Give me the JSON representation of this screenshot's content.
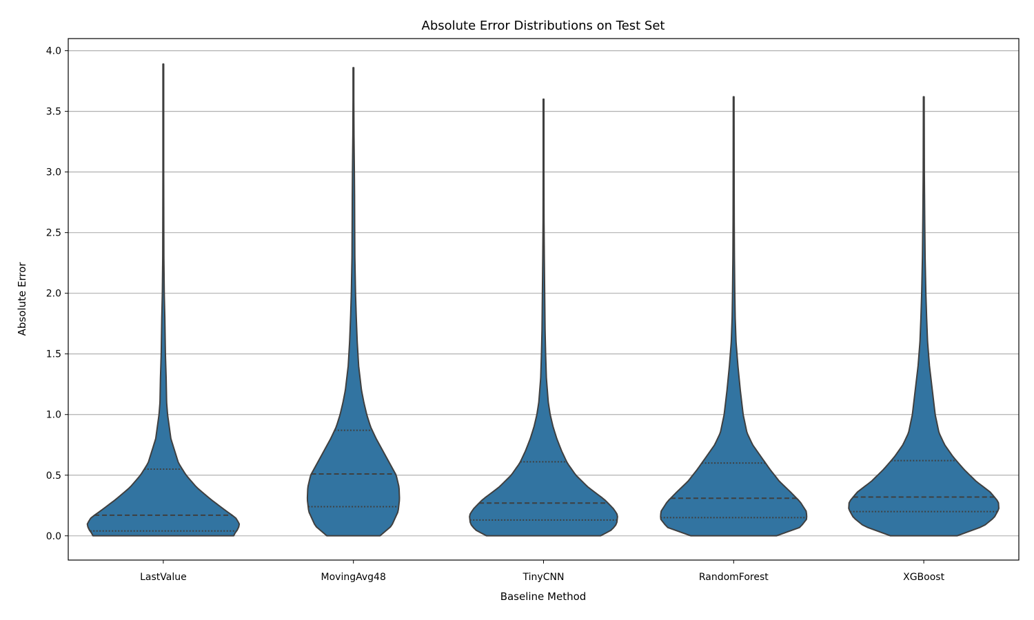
{
  "chart_data": {
    "type": "violin",
    "title": "Absolute Error Distributions on Test Set",
    "xlabel": "Baseline Method",
    "ylabel": "Absolute Error",
    "ylim": [
      -0.2,
      4.1
    ],
    "yticks": [
      0.0,
      0.5,
      1.0,
      1.5,
      2.0,
      2.5,
      3.0,
      3.5,
      4.0
    ],
    "ytick_labels": [
      "0.0",
      "0.5",
      "1.0",
      "1.5",
      "2.0",
      "2.5",
      "3.0",
      "3.5",
      "4.0"
    ],
    "grid": "horizontal",
    "fill_color": "#3274a1",
    "edge_color": "#3f3f3f",
    "categories": [
      "LastValue",
      "MovingAvg48",
      "TinyCNN",
      "RandomForest",
      "XGBoost"
    ],
    "series": [
      {
        "category": "LastValue",
        "min": 0.0,
        "max": 3.89,
        "quartiles": [
          0.04,
          0.17,
          0.55
        ],
        "density": [
          [
            0.0,
            0.74
          ],
          [
            0.03,
            0.76
          ],
          [
            0.06,
            0.79
          ],
          [
            0.1,
            0.8
          ],
          [
            0.15,
            0.76
          ],
          [
            0.2,
            0.67
          ],
          [
            0.3,
            0.5
          ],
          [
            0.4,
            0.35
          ],
          [
            0.5,
            0.24
          ],
          [
            0.6,
            0.16
          ],
          [
            0.8,
            0.08
          ],
          [
            1.0,
            0.045
          ],
          [
            1.1,
            0.035
          ],
          [
            1.3,
            0.03
          ],
          [
            1.5,
            0.022
          ],
          [
            1.8,
            0.016
          ],
          [
            2.0,
            0.01
          ],
          [
            2.3,
            0.006
          ],
          [
            2.6,
            0.005
          ],
          [
            3.0,
            0.004
          ],
          [
            3.5,
            0.004
          ],
          [
            3.89,
            0.004
          ]
        ]
      },
      {
        "category": "MovingAvg48",
        "min": 0.0,
        "max": 3.86,
        "quartiles": [
          0.24,
          0.51,
          0.87
        ],
        "density": [
          [
            0.0,
            0.28
          ],
          [
            0.08,
            0.4
          ],
          [
            0.2,
            0.47
          ],
          [
            0.3,
            0.485
          ],
          [
            0.4,
            0.48
          ],
          [
            0.5,
            0.45
          ],
          [
            0.6,
            0.38
          ],
          [
            0.7,
            0.31
          ],
          [
            0.8,
            0.24
          ],
          [
            0.9,
            0.18
          ],
          [
            1.0,
            0.14
          ],
          [
            1.1,
            0.11
          ],
          [
            1.2,
            0.085
          ],
          [
            1.4,
            0.055
          ],
          [
            1.6,
            0.04
          ],
          [
            1.8,
            0.03
          ],
          [
            2.0,
            0.022
          ],
          [
            2.3,
            0.015
          ],
          [
            2.6,
            0.013
          ],
          [
            2.8,
            0.012
          ],
          [
            3.0,
            0.01
          ],
          [
            3.3,
            0.006
          ],
          [
            3.6,
            0.004
          ],
          [
            3.86,
            0.004
          ]
        ]
      },
      {
        "category": "TinyCNN",
        "min": 0.0,
        "max": 3.6,
        "quartiles": [
          0.13,
          0.27,
          0.61
        ],
        "density": [
          [
            0.0,
            0.6
          ],
          [
            0.05,
            0.72
          ],
          [
            0.1,
            0.77
          ],
          [
            0.17,
            0.78
          ],
          [
            0.22,
            0.74
          ],
          [
            0.3,
            0.64
          ],
          [
            0.4,
            0.47
          ],
          [
            0.5,
            0.34
          ],
          [
            0.6,
            0.25
          ],
          [
            0.7,
            0.19
          ],
          [
            0.8,
            0.14
          ],
          [
            0.9,
            0.1
          ],
          [
            1.0,
            0.07
          ],
          [
            1.1,
            0.05
          ],
          [
            1.3,
            0.03
          ],
          [
            1.5,
            0.022
          ],
          [
            1.7,
            0.016
          ],
          [
            2.0,
            0.012
          ],
          [
            2.3,
            0.008
          ],
          [
            2.6,
            0.005
          ],
          [
            3.0,
            0.004
          ],
          [
            3.6,
            0.004
          ]
        ]
      },
      {
        "category": "RandomForest",
        "min": 0.0,
        "max": 3.62,
        "quartiles": [
          0.15,
          0.31,
          0.6
        ],
        "density": [
          [
            0.0,
            0.45
          ],
          [
            0.07,
            0.7
          ],
          [
            0.14,
            0.77
          ],
          [
            0.2,
            0.765
          ],
          [
            0.28,
            0.7
          ],
          [
            0.36,
            0.6
          ],
          [
            0.45,
            0.48
          ],
          [
            0.55,
            0.38
          ],
          [
            0.65,
            0.29
          ],
          [
            0.75,
            0.2
          ],
          [
            0.85,
            0.14
          ],
          [
            1.0,
            0.1
          ],
          [
            1.2,
            0.07
          ],
          [
            1.4,
            0.045
          ],
          [
            1.6,
            0.025
          ],
          [
            1.8,
            0.016
          ],
          [
            2.0,
            0.012
          ],
          [
            2.3,
            0.008
          ],
          [
            2.6,
            0.006
          ],
          [
            3.0,
            0.005
          ],
          [
            3.62,
            0.004
          ]
        ]
      },
      {
        "category": "XGBoost",
        "min": 0.0,
        "max": 3.62,
        "quartiles": [
          0.2,
          0.32,
          0.62
        ],
        "density": [
          [
            0.0,
            0.35
          ],
          [
            0.08,
            0.63
          ],
          [
            0.15,
            0.74
          ],
          [
            0.22,
            0.79
          ],
          [
            0.28,
            0.785
          ],
          [
            0.36,
            0.7
          ],
          [
            0.45,
            0.55
          ],
          [
            0.55,
            0.42
          ],
          [
            0.65,
            0.31
          ],
          [
            0.75,
            0.22
          ],
          [
            0.85,
            0.16
          ],
          [
            1.0,
            0.12
          ],
          [
            1.2,
            0.09
          ],
          [
            1.4,
            0.06
          ],
          [
            1.6,
            0.04
          ],
          [
            1.8,
            0.03
          ],
          [
            2.0,
            0.022
          ],
          [
            2.3,
            0.014
          ],
          [
            2.6,
            0.01
          ],
          [
            3.0,
            0.006
          ],
          [
            3.62,
            0.004
          ]
        ]
      }
    ]
  }
}
